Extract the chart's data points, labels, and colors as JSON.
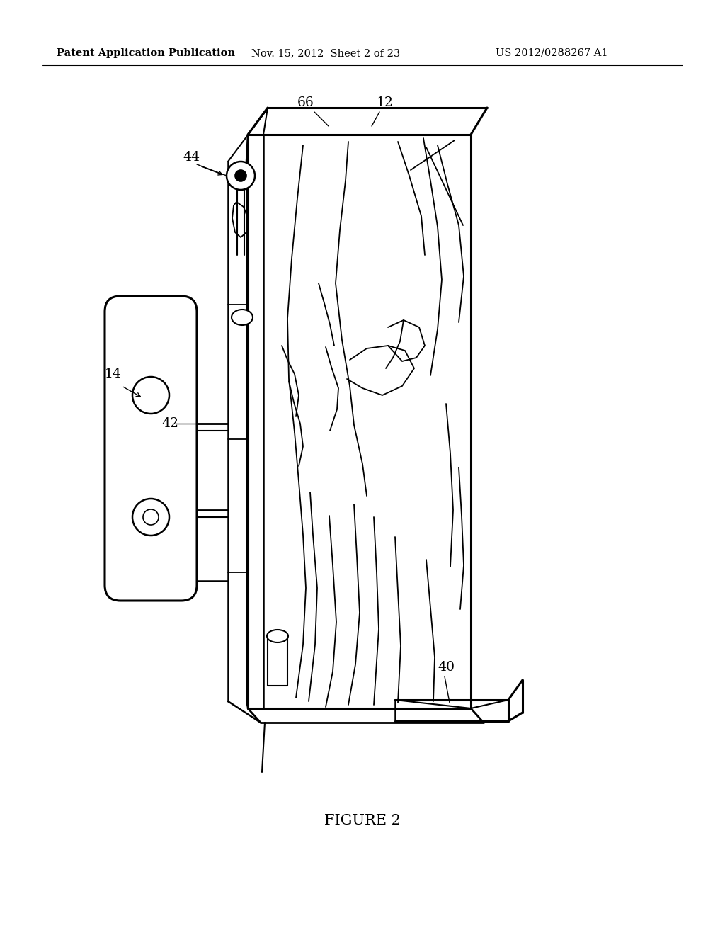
{
  "background_color": "#ffffff",
  "header_left": "Patent Application Publication",
  "header_center": "Nov. 15, 2012  Sheet 2 of 23",
  "header_right": "US 2012/0288267 A1",
  "header_fontsize": 10.5,
  "caption": "FIGURE 2",
  "caption_fontsize": 15,
  "label_fontsize": 13.5,
  "line_color": "#000000"
}
